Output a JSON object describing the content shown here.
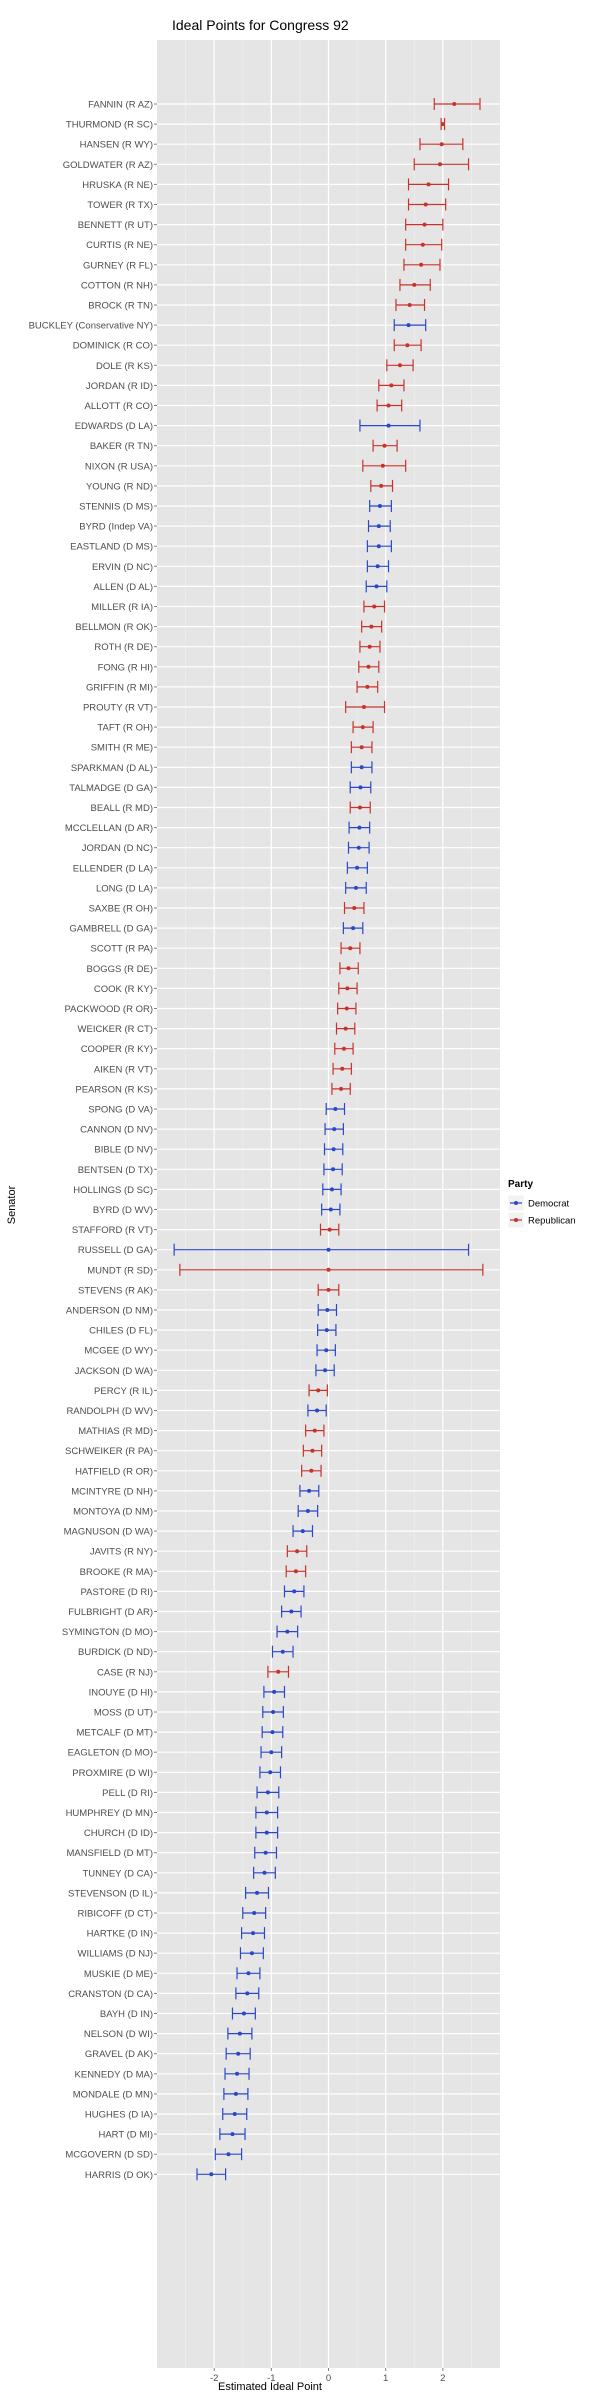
{
  "chart_data": {
    "type": "scatter",
    "title": "Ideal Points for Congress 92",
    "xlabel": "Estimated Ideal Point",
    "ylabel": "Senator",
    "xlim": [
      -3,
      3
    ],
    "x_ticks": [
      -2,
      -1,
      0,
      1,
      2
    ],
    "x_tick_labels": [
      "-2",
      "-1",
      "0",
      "1",
      "2"
    ],
    "grid": true,
    "legend": {
      "title": "Party",
      "placement": "right",
      "entries": [
        {
          "name": "Democrat",
          "color": "#2b47c8"
        },
        {
          "name": "Republican",
          "color": "#c8322b"
        }
      ]
    },
    "series": [
      {
        "name": "Democrat",
        "color": "#2b47c8"
      },
      {
        "name": "Republican",
        "color": "#c8322b"
      }
    ],
    "senators": [
      {
        "label": "FANNIN (R AZ)",
        "party": "Republican",
        "x": 2.2,
        "low": 1.85,
        "high": 2.65
      },
      {
        "label": "THURMOND (R SC)",
        "party": "Republican",
        "x": 2.0,
        "low": 1.97,
        "high": 2.03
      },
      {
        "label": "HANSEN (R WY)",
        "party": "Republican",
        "x": 1.98,
        "low": 1.6,
        "high": 2.35
      },
      {
        "label": "GOLDWATER (R AZ)",
        "party": "Republican",
        "x": 1.95,
        "low": 1.5,
        "high": 2.45
      },
      {
        "label": "HRUSKA (R NE)",
        "party": "Republican",
        "x": 1.75,
        "low": 1.4,
        "high": 2.1
      },
      {
        "label": "TOWER (R TX)",
        "party": "Republican",
        "x": 1.7,
        "low": 1.4,
        "high": 2.05
      },
      {
        "label": "BENNETT (R UT)",
        "party": "Republican",
        "x": 1.68,
        "low": 1.35,
        "high": 2.0
      },
      {
        "label": "CURTIS (R NE)",
        "party": "Republican",
        "x": 1.65,
        "low": 1.35,
        "high": 1.98
      },
      {
        "label": "GURNEY (R FL)",
        "party": "Republican",
        "x": 1.62,
        "low": 1.32,
        "high": 1.95
      },
      {
        "label": "COTTON (R NH)",
        "party": "Republican",
        "x": 1.5,
        "low": 1.25,
        "high": 1.78
      },
      {
        "label": "BROCK (R TN)",
        "party": "Republican",
        "x": 1.42,
        "low": 1.18,
        "high": 1.68
      },
      {
        "label": "BUCKLEY (Conservative NY)",
        "party": "Democrat",
        "x": 1.4,
        "low": 1.15,
        "high": 1.7
      },
      {
        "label": "DOMINICK (R CO)",
        "party": "Republican",
        "x": 1.38,
        "low": 1.15,
        "high": 1.62
      },
      {
        "label": "DOLE (R KS)",
        "party": "Republican",
        "x": 1.25,
        "low": 1.02,
        "high": 1.48
      },
      {
        "label": "JORDAN (R ID)",
        "party": "Republican",
        "x": 1.1,
        "low": 0.88,
        "high": 1.32
      },
      {
        "label": "ALLOTT (R CO)",
        "party": "Republican",
        "x": 1.05,
        "low": 0.85,
        "high": 1.28
      },
      {
        "label": "EDWARDS (D LA)",
        "party": "Democrat",
        "x": 1.05,
        "low": 0.55,
        "high": 1.6
      },
      {
        "label": "BAKER (R TN)",
        "party": "Republican",
        "x": 0.98,
        "low": 0.78,
        "high": 1.2
      },
      {
        "label": "NIXON (R USA)",
        "party": "Republican",
        "x": 0.95,
        "low": 0.6,
        "high": 1.35
      },
      {
        "label": "YOUNG (R ND)",
        "party": "Republican",
        "x": 0.92,
        "low": 0.74,
        "high": 1.12
      },
      {
        "label": "STENNIS (D MS)",
        "party": "Democrat",
        "x": 0.9,
        "low": 0.72,
        "high": 1.1
      },
      {
        "label": "BYRD (Indep VA)",
        "party": "Democrat",
        "x": 0.88,
        "low": 0.7,
        "high": 1.08
      },
      {
        "label": "EASTLAND (D MS)",
        "party": "Democrat",
        "x": 0.88,
        "low": 0.68,
        "high": 1.1
      },
      {
        "label": "ERVIN (D NC)",
        "party": "Democrat",
        "x": 0.86,
        "low": 0.68,
        "high": 1.05
      },
      {
        "label": "ALLEN (D AL)",
        "party": "Democrat",
        "x": 0.84,
        "low": 0.66,
        "high": 1.02
      },
      {
        "label": "MILLER (R IA)",
        "party": "Republican",
        "x": 0.8,
        "low": 0.62,
        "high": 0.98
      },
      {
        "label": "BELLMON (R OK)",
        "party": "Republican",
        "x": 0.75,
        "low": 0.58,
        "high": 0.93
      },
      {
        "label": "ROTH (R DE)",
        "party": "Republican",
        "x": 0.72,
        "low": 0.55,
        "high": 0.9
      },
      {
        "label": "FONG (R HI)",
        "party": "Republican",
        "x": 0.7,
        "low": 0.53,
        "high": 0.88
      },
      {
        "label": "GRIFFIN (R MI)",
        "party": "Republican",
        "x": 0.68,
        "low": 0.5,
        "high": 0.86
      },
      {
        "label": "PROUTY (R VT)",
        "party": "Republican",
        "x": 0.62,
        "low": 0.3,
        "high": 0.98
      },
      {
        "label": "TAFT (R OH)",
        "party": "Republican",
        "x": 0.6,
        "low": 0.43,
        "high": 0.78
      },
      {
        "label": "SMITH (R ME)",
        "party": "Republican",
        "x": 0.58,
        "low": 0.4,
        "high": 0.76
      },
      {
        "label": "SPARKMAN (D AL)",
        "party": "Democrat",
        "x": 0.58,
        "low": 0.4,
        "high": 0.76
      },
      {
        "label": "TALMADGE (D GA)",
        "party": "Democrat",
        "x": 0.56,
        "low": 0.38,
        "high": 0.74
      },
      {
        "label": "BEALL (R MD)",
        "party": "Republican",
        "x": 0.55,
        "low": 0.38,
        "high": 0.73
      },
      {
        "label": "MCCLELLAN (D AR)",
        "party": "Democrat",
        "x": 0.54,
        "low": 0.36,
        "high": 0.72
      },
      {
        "label": "JORDAN (D NC)",
        "party": "Democrat",
        "x": 0.53,
        "low": 0.35,
        "high": 0.71
      },
      {
        "label": "ELLENDER (D LA)",
        "party": "Democrat",
        "x": 0.5,
        "low": 0.33,
        "high": 0.68
      },
      {
        "label": "LONG (D LA)",
        "party": "Democrat",
        "x": 0.48,
        "low": 0.3,
        "high": 0.66
      },
      {
        "label": "SAXBE (R OH)",
        "party": "Republican",
        "x": 0.45,
        "low": 0.28,
        "high": 0.62
      },
      {
        "label": "GAMBRELL (D GA)",
        "party": "Democrat",
        "x": 0.43,
        "low": 0.26,
        "high": 0.6
      },
      {
        "label": "SCOTT (R PA)",
        "party": "Republican",
        "x": 0.38,
        "low": 0.22,
        "high": 0.55
      },
      {
        "label": "BOGGS (R DE)",
        "party": "Republican",
        "x": 0.35,
        "low": 0.2,
        "high": 0.52
      },
      {
        "label": "COOK (R KY)",
        "party": "Republican",
        "x": 0.33,
        "low": 0.18,
        "high": 0.5
      },
      {
        "label": "PACKWOOD (R OR)",
        "party": "Republican",
        "x": 0.32,
        "low": 0.16,
        "high": 0.48
      },
      {
        "label": "WEICKER (R CT)",
        "party": "Republican",
        "x": 0.3,
        "low": 0.14,
        "high": 0.46
      },
      {
        "label": "COOPER (R KY)",
        "party": "Republican",
        "x": 0.27,
        "low": 0.11,
        "high": 0.43
      },
      {
        "label": "AIKEN (R VT)",
        "party": "Republican",
        "x": 0.24,
        "low": 0.08,
        "high": 0.4
      },
      {
        "label": "PEARSON (R KS)",
        "party": "Republican",
        "x": 0.22,
        "low": 0.06,
        "high": 0.38
      },
      {
        "label": "SPONG (D VA)",
        "party": "Democrat",
        "x": 0.12,
        "low": -0.04,
        "high": 0.28
      },
      {
        "label": "CANNON (D NV)",
        "party": "Democrat",
        "x": 0.1,
        "low": -0.06,
        "high": 0.26
      },
      {
        "label": "BIBLE (D NV)",
        "party": "Democrat",
        "x": 0.09,
        "low": -0.07,
        "high": 0.25
      },
      {
        "label": "BENTSEN (D TX)",
        "party": "Democrat",
        "x": 0.08,
        "low": -0.08,
        "high": 0.24
      },
      {
        "label": "HOLLINGS (D SC)",
        "party": "Democrat",
        "x": 0.06,
        "low": -0.1,
        "high": 0.22
      },
      {
        "label": "BYRD (D WV)",
        "party": "Democrat",
        "x": 0.04,
        "low": -0.12,
        "high": 0.2
      },
      {
        "label": "STAFFORD (R VT)",
        "party": "Republican",
        "x": 0.02,
        "low": -0.14,
        "high": 0.18
      },
      {
        "label": "RUSSELL (D GA)",
        "party": "Democrat",
        "x": 0.0,
        "low": -2.7,
        "high": 2.45
      },
      {
        "label": "MUNDT (R SD)",
        "party": "Republican",
        "x": 0.0,
        "low": -2.6,
        "high": 2.7
      },
      {
        "label": "STEVENS (R AK)",
        "party": "Republican",
        "x": 0.0,
        "low": -0.18,
        "high": 0.18
      },
      {
        "label": "ANDERSON (D NM)",
        "party": "Democrat",
        "x": -0.02,
        "low": -0.18,
        "high": 0.14
      },
      {
        "label": "CHILES (D FL)",
        "party": "Democrat",
        "x": -0.03,
        "low": -0.19,
        "high": 0.13
      },
      {
        "label": "MCGEE (D WY)",
        "party": "Democrat",
        "x": -0.04,
        "low": -0.2,
        "high": 0.12
      },
      {
        "label": "JACKSON (D WA)",
        "party": "Democrat",
        "x": -0.06,
        "low": -0.22,
        "high": 0.1
      },
      {
        "label": "PERCY (R IL)",
        "party": "Republican",
        "x": -0.18,
        "low": -0.34,
        "high": -0.02
      },
      {
        "label": "RANDOLPH (D WV)",
        "party": "Democrat",
        "x": -0.2,
        "low": -0.36,
        "high": -0.04
      },
      {
        "label": "MATHIAS (R MD)",
        "party": "Republican",
        "x": -0.24,
        "low": -0.4,
        "high": -0.08
      },
      {
        "label": "SCHWEIKER (R PA)",
        "party": "Republican",
        "x": -0.28,
        "low": -0.44,
        "high": -0.12
      },
      {
        "label": "HATFIELD (R OR)",
        "party": "Republican",
        "x": -0.3,
        "low": -0.47,
        "high": -0.13
      },
      {
        "label": "MCINTYRE (D NH)",
        "party": "Democrat",
        "x": -0.34,
        "low": -0.5,
        "high": -0.17
      },
      {
        "label": "MONTOYA (D NM)",
        "party": "Democrat",
        "x": -0.36,
        "low": -0.53,
        "high": -0.19
      },
      {
        "label": "MAGNUSON (D WA)",
        "party": "Democrat",
        "x": -0.45,
        "low": -0.62,
        "high": -0.28
      },
      {
        "label": "JAVITS (R NY)",
        "party": "Republican",
        "x": -0.55,
        "low": -0.72,
        "high": -0.38
      },
      {
        "label": "BROOKE (R MA)",
        "party": "Republican",
        "x": -0.57,
        "low": -0.74,
        "high": -0.4
      },
      {
        "label": "PASTORE (D RI)",
        "party": "Democrat",
        "x": -0.6,
        "low": -0.77,
        "high": -0.43
      },
      {
        "label": "FULBRIGHT (D AR)",
        "party": "Democrat",
        "x": -0.65,
        "low": -0.82,
        "high": -0.48
      },
      {
        "label": "SYMINGTON (D MO)",
        "party": "Democrat",
        "x": -0.72,
        "low": -0.9,
        "high": -0.54
      },
      {
        "label": "BURDICK (D ND)",
        "party": "Democrat",
        "x": -0.8,
        "low": -0.98,
        "high": -0.62
      },
      {
        "label": "CASE (R NJ)",
        "party": "Republican",
        "x": -0.88,
        "low": -1.06,
        "high": -0.7
      },
      {
        "label": "INOUYE (D HI)",
        "party": "Democrat",
        "x": -0.95,
        "low": -1.13,
        "high": -0.77
      },
      {
        "label": "MOSS (D UT)",
        "party": "Democrat",
        "x": -0.97,
        "low": -1.15,
        "high": -0.79
      },
      {
        "label": "METCALF (D MT)",
        "party": "Democrat",
        "x": -0.98,
        "low": -1.16,
        "high": -0.8
      },
      {
        "label": "EAGLETON (D MO)",
        "party": "Democrat",
        "x": -1.0,
        "low": -1.18,
        "high": -0.82
      },
      {
        "label": "PROXMIRE (D WI)",
        "party": "Democrat",
        "x": -1.02,
        "low": -1.2,
        "high": -0.84
      },
      {
        "label": "PELL (D RI)",
        "party": "Democrat",
        "x": -1.06,
        "low": -1.25,
        "high": -0.87
      },
      {
        "label": "HUMPHREY (D MN)",
        "party": "Democrat",
        "x": -1.08,
        "low": -1.27,
        "high": -0.89
      },
      {
        "label": "CHURCH (D ID)",
        "party": "Democrat",
        "x": -1.08,
        "low": -1.27,
        "high": -0.89
      },
      {
        "label": "MANSFIELD (D MT)",
        "party": "Democrat",
        "x": -1.1,
        "low": -1.29,
        "high": -0.91
      },
      {
        "label": "TUNNEY (D CA)",
        "party": "Democrat",
        "x": -1.12,
        "low": -1.31,
        "high": -0.93
      },
      {
        "label": "STEVENSON (D IL)",
        "party": "Democrat",
        "x": -1.25,
        "low": -1.45,
        "high": -1.05
      },
      {
        "label": "RIBICOFF (D CT)",
        "party": "Democrat",
        "x": -1.3,
        "low": -1.5,
        "high": -1.1
      },
      {
        "label": "HARTKE (D IN)",
        "party": "Democrat",
        "x": -1.32,
        "low": -1.52,
        "high": -1.12
      },
      {
        "label": "WILLIAMS (D NJ)",
        "party": "Democrat",
        "x": -1.34,
        "low": -1.54,
        "high": -1.14
      },
      {
        "label": "MUSKIE (D ME)",
        "party": "Democrat",
        "x": -1.4,
        "low": -1.6,
        "high": -1.2
      },
      {
        "label": "CRANSTON (D CA)",
        "party": "Democrat",
        "x": -1.42,
        "low": -1.62,
        "high": -1.22
      },
      {
        "label": "BAYH (D IN)",
        "party": "Democrat",
        "x": -1.48,
        "low": -1.68,
        "high": -1.28
      },
      {
        "label": "NELSON (D WI)",
        "party": "Democrat",
        "x": -1.55,
        "low": -1.76,
        "high": -1.34
      },
      {
        "label": "GRAVEL (D AK)",
        "party": "Democrat",
        "x": -1.58,
        "low": -1.79,
        "high": -1.37
      },
      {
        "label": "KENNEDY (D MA)",
        "party": "Democrat",
        "x": -1.6,
        "low": -1.81,
        "high": -1.39
      },
      {
        "label": "MONDALE (D MN)",
        "party": "Democrat",
        "x": -1.62,
        "low": -1.83,
        "high": -1.41
      },
      {
        "label": "HUGHES (D IA)",
        "party": "Democrat",
        "x": -1.64,
        "low": -1.85,
        "high": -1.43
      },
      {
        "label": "HART (D MI)",
        "party": "Democrat",
        "x": -1.68,
        "low": -1.9,
        "high": -1.46
      },
      {
        "label": "MCGOVERN (D SD)",
        "party": "Democrat",
        "x": -1.75,
        "low": -1.98,
        "high": -1.52
      },
      {
        "label": "HARRIS (D OK)",
        "party": "Democrat",
        "x": -2.05,
        "low": -2.3,
        "high": -1.8
      }
    ]
  }
}
